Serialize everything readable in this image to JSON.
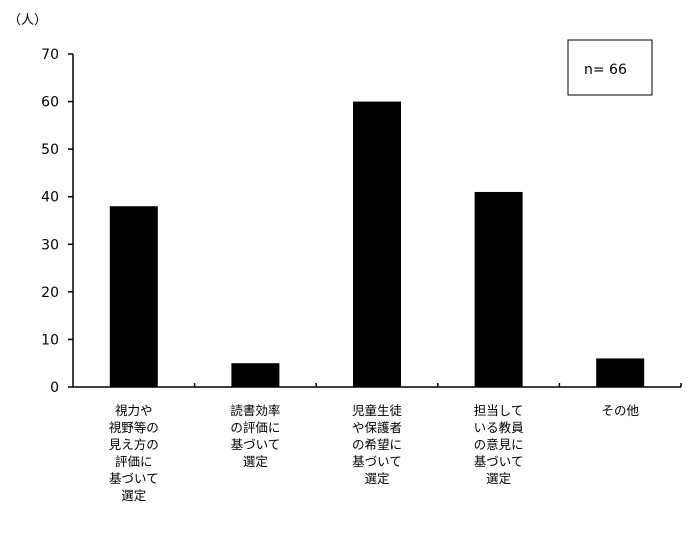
{
  "chart_data": {
    "type": "bar",
    "unit_label": "（人）",
    "categories": [
      [
        "視力や",
        "視野等の",
        "見え方の",
        "評価に",
        "基づいて",
        "選定"
      ],
      [
        "読書効率",
        "の評価に",
        "基づいて",
        "選定"
      ],
      [
        "児童生徒",
        "や保護者",
        "の希望に",
        "基づいて",
        "選定"
      ],
      [
        "担当して",
        "いる教員",
        "の意見に",
        "基づいて",
        "選定"
      ],
      [
        "その他"
      ]
    ],
    "values": [
      38,
      5,
      60,
      41,
      6
    ],
    "ylim": [
      0,
      70
    ],
    "yticks": [
      0,
      10,
      20,
      30,
      40,
      50,
      60,
      70
    ],
    "annotation": "n= 66",
    "bar_color": "#000000",
    "grid": false
  }
}
